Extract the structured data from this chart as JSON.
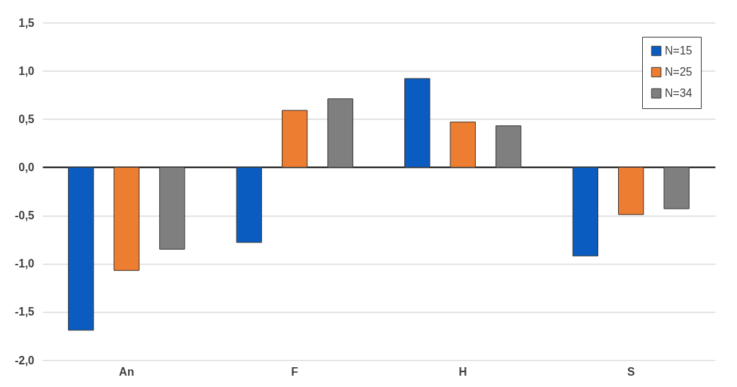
{
  "chart_data": {
    "type": "bar",
    "categories": [
      "An",
      "F",
      "H",
      "S"
    ],
    "series": [
      {
        "name": "N=15",
        "color": "#0a5cc0",
        "values": [
          -1.69,
          -0.78,
          0.92,
          -0.92
        ]
      },
      {
        "name": "N=25",
        "color": "#ed7d31",
        "values": [
          -1.07,
          0.59,
          0.47,
          -0.49
        ]
      },
      {
        "name": "N=34",
        "color": "#7f7f7f",
        "values": [
          -0.85,
          0.71,
          0.43,
          -0.43
        ]
      }
    ],
    "ylim": [
      -2.0,
      1.5
    ],
    "yticks": [
      {
        "value": -2.0,
        "label": "-2,0"
      },
      {
        "value": -1.5,
        "label": "-1,5"
      },
      {
        "value": -1.0,
        "label": "-1,0"
      },
      {
        "value": -0.5,
        "label": "-0,5"
      },
      {
        "value": 0,
        "label": "0,0"
      },
      {
        "value": 0.5,
        "label": "0,5"
      },
      {
        "value": 1.0,
        "label": "1,0"
      },
      {
        "value": 1.5,
        "label": "1,5"
      }
    ],
    "grid": "y",
    "legend": "top right"
  }
}
